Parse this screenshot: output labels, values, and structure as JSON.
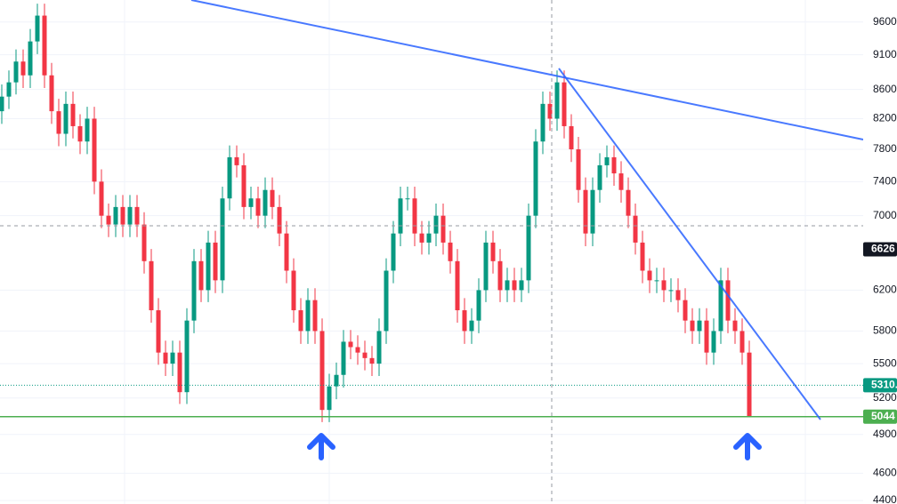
{
  "chart_data": {
    "type": "candlestick",
    "up_color": "#089981",
    "down_color": "#f23645",
    "log_scale": true,
    "grid": true,
    "ylim": [
      4375,
      9950
    ],
    "yticks": [
      9600,
      {
        "value": 9100,
        "label": "9100."
      },
      8600,
      8200,
      7800,
      7400,
      7000,
      6200,
      5800,
      5500,
      5200,
      4900,
      4600,
      4400
    ],
    "open": [
      8300,
      8500,
      8700,
      9000,
      8800,
      9300,
      9700,
      8800,
      8300,
      8000,
      8400,
      8100,
      7900,
      8200,
      7400,
      7000,
      6900,
      7100,
      6900,
      7100,
      6900,
      6500,
      6000,
      5600,
      5500,
      5600,
      5250,
      5900,
      6500,
      6200,
      6700,
      6300,
      7200,
      7700,
      7600,
      7100,
      7200,
      7000,
      7300,
      7100,
      6800,
      6400,
      6000,
      5800,
      6100,
      5800,
      5100,
      5300,
      5400,
      5700,
      5650,
      5600,
      5550,
      5500,
      5800,
      6400,
      6800,
      7200,
      7200,
      6800,
      6700,
      6800,
      7000,
      6700,
      6500,
      6000,
      5800,
      5900,
      6200,
      6700,
      6500,
      6200,
      6300,
      6200,
      6300,
      7000,
      7900,
      8400,
      8200,
      8700,
      8100,
      7800,
      7300,
      6800,
      7300,
      7600,
      7700,
      7500,
      7300,
      7000,
      6700,
      6400,
      6300,
      6300,
      6200,
      6200,
      6100,
      5900,
      5800,
      5900,
      5600,
      5800,
      6300,
      5900,
      5800,
      5600
    ],
    "high": [
      8670,
      8870,
      9180,
      9180,
      9490,
      9890,
      9890,
      8980,
      8470,
      8570,
      8570,
      8260,
      8360,
      8360,
      7550,
      7140,
      7240,
      7240,
      7240,
      7240,
      7040,
      6630,
      6120,
      5710,
      5710,
      5710,
      6020,
      6630,
      6630,
      6830,
      6830,
      7340,
      7850,
      7850,
      7750,
      7340,
      7340,
      7450,
      7450,
      7240,
      6940,
      6530,
      6120,
      6220,
      6220,
      5920,
      5410,
      5510,
      5810,
      5810,
      5760,
      5710,
      5660,
      5920,
      6530,
      6940,
      7340,
      7340,
      7340,
      6940,
      6940,
      7140,
      7140,
      6830,
      6630,
      6120,
      6020,
      6320,
      6830,
      6830,
      6630,
      6430,
      6430,
      6430,
      7140,
      8060,
      8570,
      8570,
      8870,
      8870,
      8260,
      7960,
      7450,
      7450,
      7750,
      7850,
      7850,
      7650,
      7450,
      7140,
      6830,
      6530,
      6430,
      6430,
      6320,
      6320,
      6220,
      6020,
      6020,
      6020,
      5920,
      6430,
      6430,
      6020,
      5920,
      5710
    ],
    "low": [
      8130,
      8330,
      8530,
      8620,
      8620,
      9110,
      8620,
      8130,
      7840,
      7840,
      7940,
      7740,
      7740,
      7250,
      6860,
      6760,
      6760,
      6760,
      6760,
      6760,
      6370,
      5880,
      5490,
      5390,
      5390,
      5150,
      5150,
      5780,
      6080,
      6080,
      6170,
      6170,
      7060,
      7450,
      6960,
      6960,
      6860,
      6860,
      6960,
      6660,
      6270,
      5880,
      5680,
      5680,
      5680,
      5000,
      5000,
      5190,
      5290,
      5540,
      5490,
      5440,
      5390,
      5390,
      5680,
      6270,
      6660,
      7060,
      6660,
      6570,
      6570,
      6660,
      6570,
      6370,
      5880,
      5680,
      5680,
      5780,
      6080,
      6370,
      6080,
      6080,
      6080,
      6080,
      6170,
      6860,
      7740,
      8040,
      8040,
      7940,
      7640,
      7150,
      6660,
      6660,
      7150,
      7450,
      7350,
      7150,
      6860,
      6570,
      6270,
      6170,
      6170,
      6080,
      6080,
      5980,
      5780,
      5680,
      5680,
      5490,
      5490,
      5680,
      5780,
      5680,
      5490,
      5040
    ],
    "close": [
      8500,
      8700,
      9000,
      8800,
      9300,
      9700,
      8800,
      8300,
      8000,
      8400,
      8100,
      7900,
      8200,
      7400,
      7000,
      6900,
      7100,
      6900,
      7100,
      6900,
      6500,
      6000,
      5600,
      5500,
      5600,
      5250,
      5900,
      6500,
      6200,
      6700,
      6300,
      7200,
      7700,
      7600,
      7100,
      7200,
      7000,
      7300,
      7100,
      6800,
      6400,
      6000,
      5800,
      6100,
      5800,
      5100,
      5300,
      5400,
      5700,
      5650,
      5600,
      5550,
      5500,
      5800,
      6400,
      6800,
      7200,
      7200,
      6800,
      6700,
      6800,
      7000,
      6700,
      6500,
      6000,
      5800,
      5900,
      6200,
      6700,
      6500,
      6200,
      6300,
      6200,
      6300,
      7000,
      7900,
      8400,
      8200,
      8700,
      8100,
      7800,
      7300,
      6800,
      7300,
      7600,
      7700,
      7500,
      7300,
      7000,
      6700,
      6400,
      6300,
      6300,
      6200,
      6200,
      6100,
      5900,
      5800,
      5900,
      5600,
      5800,
      6300,
      5900,
      5800,
      5600,
      5050
    ],
    "price_lines": [
      {
        "value": 6626,
        "label": "6626",
        "color": "#131722",
        "style": "none"
      },
      {
        "value": 5310,
        "label": "5310.",
        "color": "#089981",
        "style": "dotted"
      },
      {
        "value": 5044,
        "label": "5044",
        "color": "#4caf50",
        "style": "solid"
      }
    ]
  }
}
